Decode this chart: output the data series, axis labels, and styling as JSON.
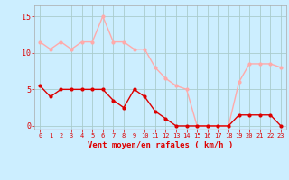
{
  "hours": [
    0,
    1,
    2,
    3,
    4,
    5,
    6,
    7,
    8,
    9,
    10,
    11,
    12,
    13,
    14,
    15,
    16,
    17,
    18,
    19,
    20,
    21,
    22,
    23
  ],
  "mean_wind": [
    5.5,
    4,
    5,
    5,
    5,
    5,
    5,
    3.5,
    2.5,
    5,
    4,
    2,
    1,
    0,
    0,
    0,
    0,
    0,
    0,
    1.5,
    1.5,
    1.5,
    1.5,
    0
  ],
  "gust_wind": [
    11.5,
    10.5,
    11.5,
    10.5,
    11.5,
    11.5,
    15,
    11.5,
    11.5,
    10.5,
    10.5,
    8,
    6.5,
    5.5,
    5,
    0,
    0,
    0,
    0,
    6,
    8.5,
    8.5,
    8.5,
    8
  ],
  "mean_color": "#dd0000",
  "gust_color": "#ffaaaa",
  "bg_color": "#cceeff",
  "grid_color": "#aacccc",
  "xlabel": "Vent moyen/en rafales ( km/h )",
  "xlabel_color": "#dd0000",
  "yticks": [
    0,
    5,
    10,
    15
  ],
  "xticks": [
    0,
    1,
    2,
    3,
    4,
    5,
    6,
    7,
    8,
    9,
    10,
    11,
    12,
    13,
    14,
    15,
    16,
    17,
    18,
    19,
    20,
    21,
    22,
    23
  ],
  "ylim": [
    -0.5,
    16.5
  ],
  "xlim": [
    -0.5,
    23.5
  ],
  "tick_color": "#dd0000",
  "spine_color": "#aaaaaa"
}
